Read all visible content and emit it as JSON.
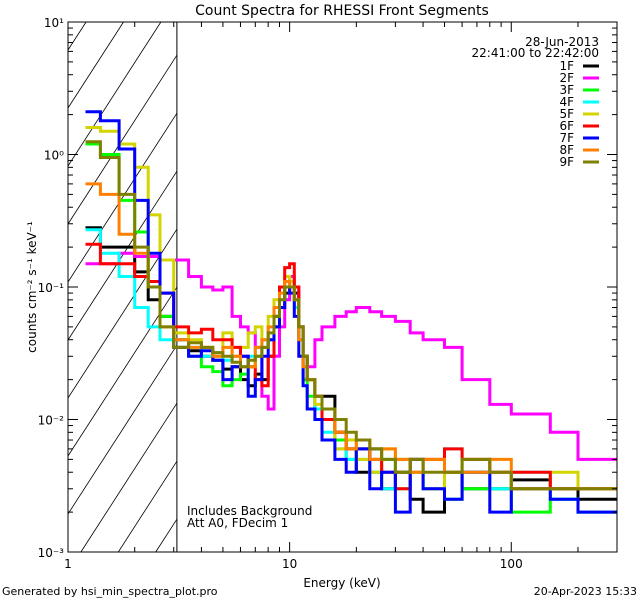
{
  "chart_data": {
    "type": "line",
    "title": "Count Spectra for RHESSI Front Segments",
    "xlabel": "Energy (keV)",
    "ylabel": "counts cm⁻² s⁻¹ keV⁻¹",
    "xscale": "log",
    "yscale": "log",
    "xlim": [
      1,
      300
    ],
    "ylim": [
      0.001,
      10
    ],
    "x_ticks": [
      {
        "value": 1,
        "label": "1"
      },
      {
        "value": 10,
        "label": "10"
      },
      {
        "value": 100,
        "label": "100"
      }
    ],
    "y_ticks": [
      {
        "value": 10,
        "label": "10¹"
      },
      {
        "value": 1,
        "label": "10⁰"
      },
      {
        "value": 0.1,
        "label": "10⁻¹"
      },
      {
        "value": 0.01,
        "label": "10⁻²"
      },
      {
        "value": 0.001,
        "label": "10⁻³"
      }
    ],
    "grid": false,
    "legend_placement": "top-right",
    "date": "28-Jun-2013",
    "time_range": "22:41:00 to 22:42:00",
    "hatched_region_keV": [
      1,
      3.1
    ],
    "annotations": [
      "Includes Background",
      "Att A0, FDecim 1"
    ],
    "bin_edges_keV": [
      1.2,
      1.4,
      1.7,
      2.0,
      2.3,
      2.6,
      3.0,
      3.5,
      4.0,
      4.5,
      5.0,
      5.5,
      6.0,
      6.5,
      7.0,
      7.5,
      8.0,
      8.5,
      9.0,
      9.5,
      10.0,
      10.5,
      11.0,
      11.5,
      12,
      13,
      14,
      16,
      18,
      20,
      23,
      26,
      30,
      35,
      40,
      50,
      60,
      80,
      100,
      150,
      200,
      300
    ],
    "series": [
      {
        "name": "1F",
        "color": "#000000",
        "values": [
          0.28,
          0.2,
          0.2,
          0.13,
          0.08,
          0.06,
          0.04,
          0.033,
          0.03,
          0.028,
          0.024,
          0.025,
          0.02,
          0.018,
          0.022,
          0.02,
          0.03,
          0.05,
          0.07,
          0.09,
          0.1,
          0.09,
          0.05,
          0.03,
          0.02,
          0.012,
          0.015,
          0.008,
          0.006,
          0.004,
          0.006,
          0.003,
          0.004,
          0.0025,
          0.002,
          0.004,
          0.003,
          0.003,
          0.0035,
          0.003,
          0.0025
        ]
      },
      {
        "name": "2F",
        "color": "#ff00ff",
        "values": [
          0.15,
          0.15,
          0.18,
          0.17,
          0.17,
          0.16,
          0.16,
          0.12,
          0.1,
          0.095,
          0.1,
          0.06,
          0.05,
          0.045,
          0.035,
          0.015,
          0.012,
          0.03,
          0.05,
          0.08,
          0.12,
          0.1,
          0.05,
          0.03,
          0.025,
          0.04,
          0.05,
          0.06,
          0.065,
          0.07,
          0.065,
          0.06,
          0.055,
          0.045,
          0.04,
          0.035,
          0.02,
          0.013,
          0.011,
          0.008,
          0.005
        ]
      },
      {
        "name": "3F",
        "color": "#00ff00",
        "values": [
          1.2,
          1.0,
          0.45,
          0.26,
          0.1,
          0.06,
          0.035,
          0.03,
          0.025,
          0.023,
          0.018,
          0.02,
          0.022,
          0.025,
          0.03,
          0.035,
          0.04,
          0.06,
          0.08,
          0.1,
          0.11,
          0.08,
          0.04,
          0.02,
          0.015,
          0.012,
          0.01,
          0.007,
          0.005,
          0.006,
          0.004,
          0.005,
          0.003,
          0.004,
          0.003,
          0.0025,
          0.003,
          0.003,
          0.002,
          0.0025,
          0.002
        ]
      },
      {
        "name": "4F",
        "color": "#00ffff",
        "values": [
          0.27,
          0.18,
          0.12,
          0.07,
          0.05,
          0.04,
          0.04,
          0.035,
          0.03,
          0.032,
          0.028,
          0.03,
          0.025,
          0.03,
          0.035,
          0.04,
          0.05,
          0.06,
          0.08,
          0.1,
          0.1,
          0.07,
          0.04,
          0.025,
          0.02,
          0.012,
          0.008,
          0.006,
          0.005,
          0.005,
          0.004,
          0.003,
          0.005,
          0.004,
          0.003,
          0.006,
          0.004,
          0.003,
          0.004,
          0.0025,
          0.002
        ]
      },
      {
        "name": "5F",
        "color": "#d4d400",
        "values": [
          1.6,
          1.5,
          1.2,
          0.8,
          0.35,
          0.16,
          0.045,
          0.04,
          0.035,
          0.03,
          0.045,
          0.03,
          0.035,
          0.045,
          0.05,
          0.04,
          0.06,
          0.08,
          0.1,
          0.12,
          0.11,
          0.08,
          0.05,
          0.03,
          0.02,
          0.013,
          0.01,
          0.006,
          0.007,
          0.005,
          0.004,
          0.006,
          0.005,
          0.004,
          0.003,
          0.004,
          0.005,
          0.004,
          0.003,
          0.004,
          0.003
        ]
      },
      {
        "name": "6F",
        "color": "#ff0000",
        "values": [
          0.21,
          0.15,
          0.15,
          0.12,
          0.11,
          0.09,
          0.05,
          0.045,
          0.048,
          0.04,
          0.04,
          0.035,
          0.03,
          0.025,
          0.02,
          0.018,
          0.03,
          0.06,
          0.1,
          0.14,
          0.15,
          0.1,
          0.05,
          0.03,
          0.02,
          0.015,
          0.01,
          0.008,
          0.006,
          0.006,
          0.005,
          0.004,
          0.003,
          0.005,
          0.005,
          0.006,
          0.005,
          0.004,
          0.004,
          0.003,
          0.003
        ]
      },
      {
        "name": "7F",
        "color": "#0000ff",
        "values": [
          2.1,
          1.8,
          1.1,
          0.45,
          0.18,
          0.09,
          0.035,
          0.03,
          0.033,
          0.028,
          0.02,
          0.025,
          0.03,
          0.015,
          0.02,
          0.03,
          0.04,
          0.05,
          0.07,
          0.1,
          0.09,
          0.06,
          0.03,
          0.018,
          0.012,
          0.01,
          0.007,
          0.005,
          0.004,
          0.006,
          0.003,
          0.004,
          0.002,
          0.005,
          0.003,
          0.0025,
          0.004,
          0.002,
          0.003,
          0.0025,
          0.002
        ]
      },
      {
        "name": "8F",
        "color": "#ff8000",
        "values": [
          0.6,
          0.5,
          0.25,
          0.18,
          0.1,
          0.05,
          0.04,
          0.035,
          0.035,
          0.03,
          0.035,
          0.03,
          0.025,
          0.025,
          0.035,
          0.04,
          0.05,
          0.07,
          0.09,
          0.11,
          0.1,
          0.08,
          0.04,
          0.025,
          0.02,
          0.015,
          0.012,
          0.008,
          0.006,
          0.007,
          0.005,
          0.006,
          0.005,
          0.004,
          0.005,
          0.004,
          0.004,
          0.005,
          0.003,
          0.003,
          0.003
        ]
      },
      {
        "name": "9F",
        "color": "#808000",
        "values": [
          1.25,
          0.95,
          0.5,
          0.2,
          0.1,
          0.05,
          0.035,
          0.038,
          0.035,
          0.032,
          0.03,
          0.027,
          0.025,
          0.028,
          0.03,
          0.035,
          0.045,
          0.06,
          0.08,
          0.1,
          0.1,
          0.08,
          0.05,
          0.03,
          0.02,
          0.015,
          0.012,
          0.01,
          0.008,
          0.007,
          0.006,
          0.005,
          0.004,
          0.005,
          0.004,
          0.004,
          0.005,
          0.004,
          0.003,
          0.003,
          0.003
        ]
      }
    ]
  },
  "footer": {
    "generated_by": "Generated by hsi_min_spectra_plot.pro",
    "timestamp": "20-Apr-2023 15:33"
  }
}
